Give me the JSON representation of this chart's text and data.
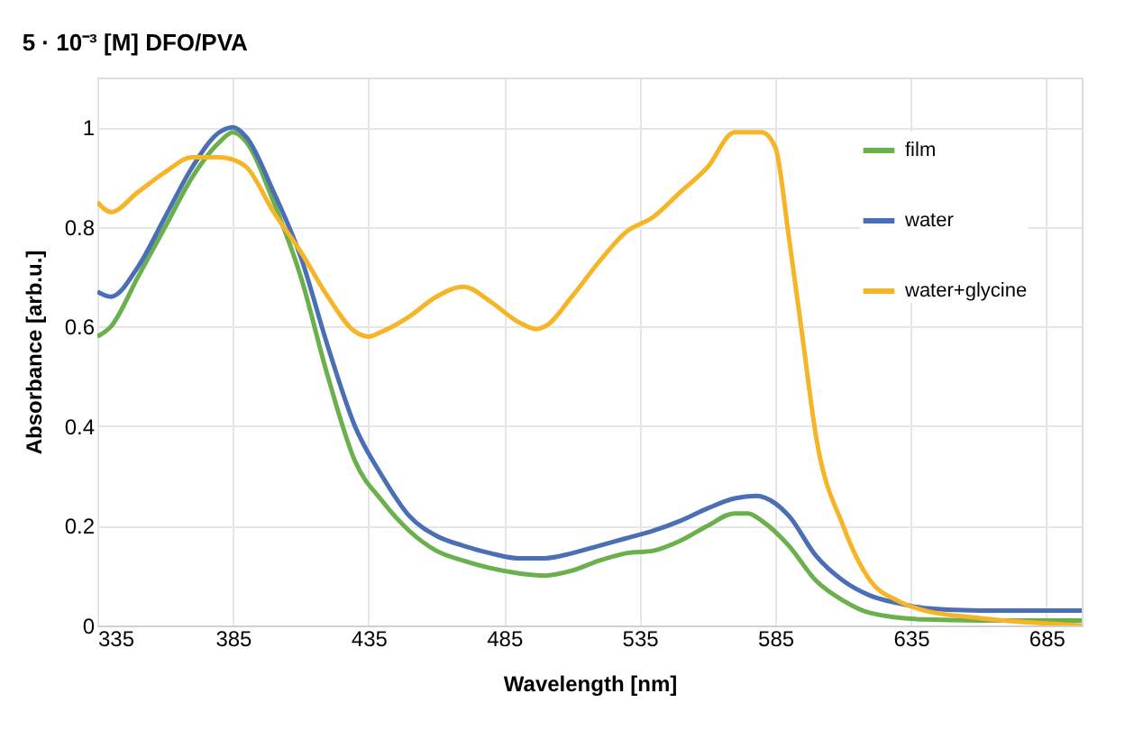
{
  "chart_data": {
    "type": "line",
    "title": "5 · 10⁻³ [M] DFO/PVA",
    "xlabel": "Wavelength [nm]",
    "ylabel": "Absorbance [arb.u.]",
    "xlim": [
      335,
      698
    ],
    "xticks": [
      335,
      385,
      435,
      485,
      535,
      585,
      635,
      685
    ],
    "ylim": [
      0,
      1.1
    ],
    "yticks": [
      0,
      0.2,
      0.4,
      0.6,
      0.8,
      1
    ],
    "grid": true,
    "legend": "top right",
    "line_style": "solid",
    "marker": "none",
    "series": [
      {
        "name": "film",
        "color": "#6ab04c",
        "x": [
          335,
          340,
          350,
          360,
          370,
          380,
          385,
          390,
          400,
          410,
          420,
          430,
          440,
          450,
          460,
          470,
          480,
          490,
          500,
          510,
          520,
          530,
          540,
          550,
          560,
          570,
          575,
          580,
          590,
          600,
          610,
          620,
          640,
          660,
          698
        ],
        "values": [
          0.58,
          0.6,
          0.7,
          0.8,
          0.9,
          0.97,
          0.99,
          0.97,
          0.85,
          0.7,
          0.5,
          0.33,
          0.25,
          0.19,
          0.15,
          0.13,
          0.115,
          0.105,
          0.1,
          0.11,
          0.13,
          0.145,
          0.15,
          0.17,
          0.2,
          0.225,
          0.225,
          0.21,
          0.16,
          0.09,
          0.05,
          0.025,
          0.012,
          0.01,
          0.01
        ]
      },
      {
        "name": "water",
        "color": "#4a6fb5",
        "x": [
          335,
          340,
          350,
          360,
          370,
          380,
          385,
          390,
          400,
          410,
          420,
          430,
          440,
          450,
          460,
          470,
          480,
          490,
          500,
          510,
          520,
          530,
          540,
          550,
          560,
          570,
          578,
          585,
          590,
          600,
          610,
          620,
          630,
          640,
          660,
          698
        ],
        "values": [
          0.67,
          0.66,
          0.72,
          0.82,
          0.92,
          0.99,
          1.0,
          0.98,
          0.87,
          0.74,
          0.56,
          0.4,
          0.3,
          0.22,
          0.18,
          0.16,
          0.145,
          0.135,
          0.135,
          0.145,
          0.16,
          0.175,
          0.19,
          0.21,
          0.235,
          0.255,
          0.26,
          0.245,
          0.22,
          0.14,
          0.09,
          0.06,
          0.045,
          0.035,
          0.03,
          0.03
        ]
      },
      {
        "name": "water+glycine",
        "color": "#f5b526",
        "x": [
          335,
          340,
          350,
          360,
          370,
          380,
          385,
          390,
          400,
          410,
          420,
          430,
          435,
          440,
          450,
          460,
          470,
          480,
          490,
          497,
          500,
          510,
          520,
          530,
          540,
          550,
          560,
          570,
          580,
          585,
          590,
          595,
          600,
          610,
          620,
          630,
          640,
          660,
          698
        ],
        "values": [
          0.85,
          0.83,
          0.87,
          0.91,
          0.94,
          0.94,
          0.935,
          0.92,
          0.83,
          0.75,
          0.66,
          0.59,
          0.58,
          0.59,
          0.62,
          0.66,
          0.68,
          0.65,
          0.61,
          0.595,
          0.6,
          0.66,
          0.73,
          0.79,
          0.82,
          0.87,
          0.92,
          0.99,
          0.99,
          0.96,
          0.78,
          0.58,
          0.38,
          0.2,
          0.09,
          0.05,
          0.03,
          0.015,
          0.0
        ]
      }
    ]
  }
}
